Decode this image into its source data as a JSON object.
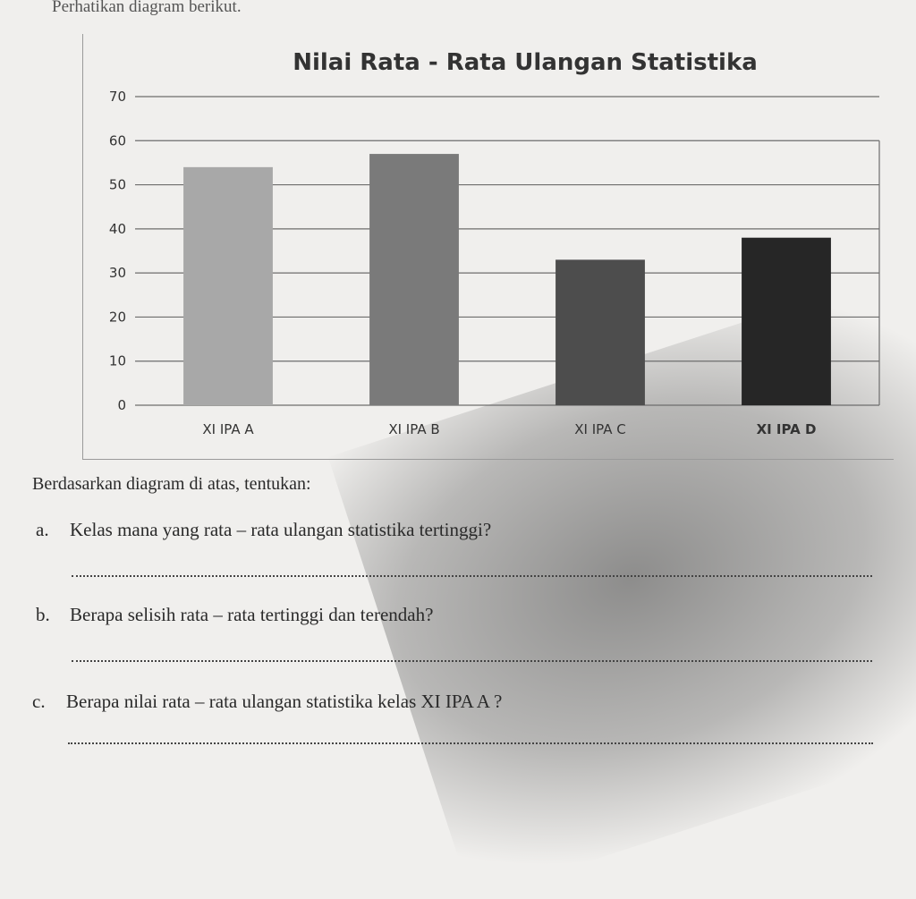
{
  "intro": "Perhatikan diagram berikut.",
  "chart_data": {
    "type": "bar",
    "title": "Nilai Rata - Rata Ulangan Statistika",
    "categories": [
      "XI IPA A",
      "XI IPA B",
      "XI IPA C",
      "XI IPA D"
    ],
    "values": [
      54,
      57,
      33,
      38
    ],
    "ylim": [
      0,
      70
    ],
    "yticks": [
      0,
      10,
      20,
      30,
      40,
      50,
      60,
      70
    ],
    "xlabel": "",
    "ylabel": "",
    "grid": true,
    "colors": [
      "#a8a8a8",
      "#7a7a7a",
      "#4d4d4d",
      "#262626"
    ]
  },
  "instructions": "Berdasarkan diagram di atas, tentukan:",
  "questions": [
    {
      "marker": "a.",
      "text": "Kelas mana yang rata – rata ulangan statistika tertinggi?"
    },
    {
      "marker": "b.",
      "text": "Berapa selisih rata – rata tertinggi dan terendah?"
    },
    {
      "marker": "c.",
      "text": "Berapa nilai rata – rata ulangan statistika kelas XI IPA A ?"
    }
  ]
}
